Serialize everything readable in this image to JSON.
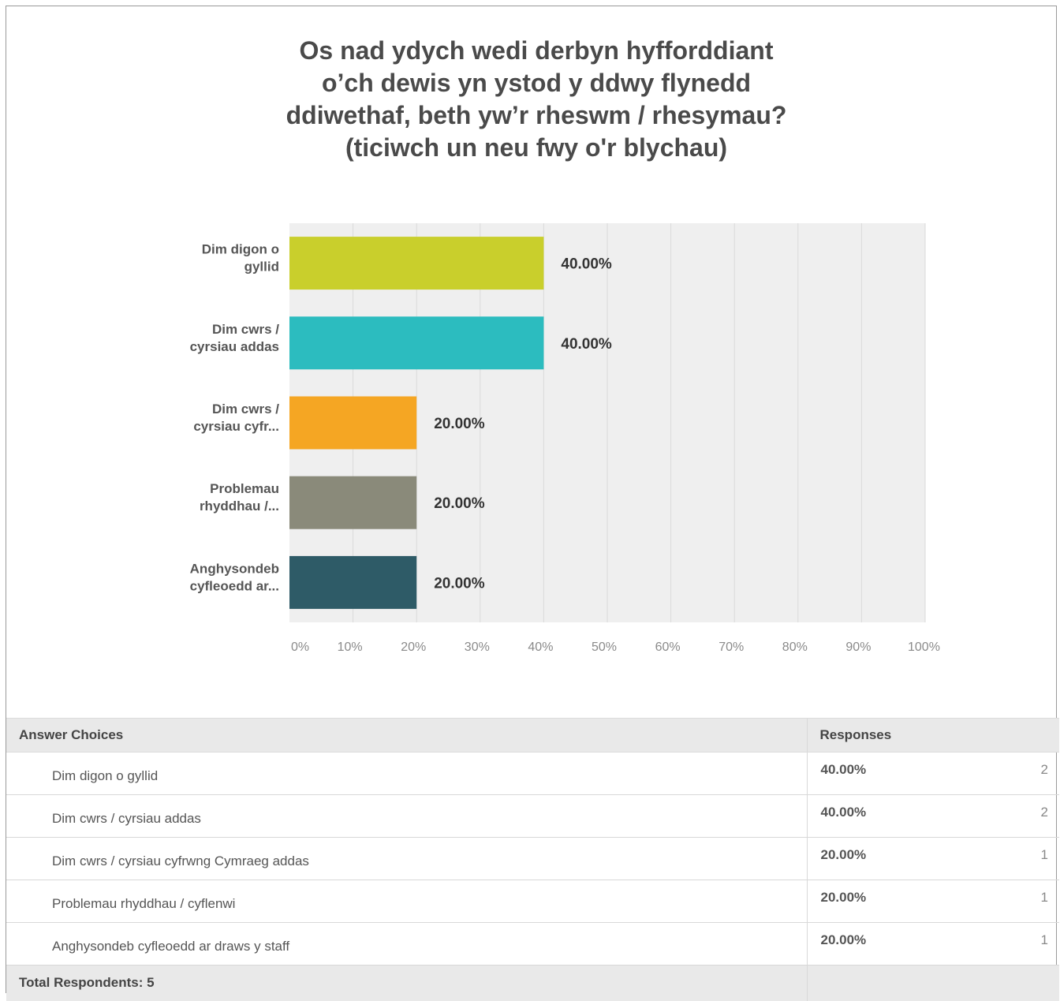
{
  "chart_data": {
    "type": "bar",
    "orientation": "horizontal",
    "title_lines": [
      "Os nad ydych wedi derbyn hyfforddiant",
      "o’ch dewis yn ystod y ddwy flynedd",
      "ddiwethaf, beth yw’r rheswm / rhesymau?",
      "(ticiwch un neu fwy o'r blychau)"
    ],
    "categories": [
      [
        "Dim digon o",
        "gyllid"
      ],
      [
        "Dim cwrs /",
        "cyrsiau addas"
      ],
      [
        "Dim cwrs /",
        "cyrsiau cyfr..."
      ],
      [
        "Problemau",
        "rhyddhau /..."
      ],
      [
        "Anghysondeb",
        "cyfleoedd ar..."
      ]
    ],
    "values": [
      40,
      40,
      20,
      20,
      20
    ],
    "value_labels": [
      "40.00%",
      "40.00%",
      "20.00%",
      "20.00%",
      "20.00%"
    ],
    "colors": [
      "#c9cf2c",
      "#2cbcbf",
      "#f5a623",
      "#8a8a7a",
      "#2e5b67"
    ],
    "xlim": [
      0,
      100
    ],
    "x_ticks": [
      0,
      10,
      20,
      30,
      40,
      50,
      60,
      70,
      80,
      90,
      100
    ],
    "x_tick_labels": [
      "0%",
      "10%",
      "20%",
      "30%",
      "40%",
      "50%",
      "60%",
      "70%",
      "80%",
      "90%",
      "100%"
    ],
    "grid": true,
    "plot_background": "#efefef"
  },
  "table": {
    "headers": [
      "Answer Choices",
      "Responses"
    ],
    "rows": [
      {
        "choice": "Dim digon o gyllid",
        "percent": "40.00%",
        "count": "2"
      },
      {
        "choice": "Dim cwrs / cyrsiau addas",
        "percent": "40.00%",
        "count": "2"
      },
      {
        "choice": "Dim cwrs / cyrsiau cyfrwng Cymraeg addas",
        "percent": "20.00%",
        "count": "1"
      },
      {
        "choice": "Problemau rhyddhau / cyflenwi",
        "percent": "20.00%",
        "count": "1"
      },
      {
        "choice": "Anghysondeb cyfleoedd ar draws y staff",
        "percent": "20.00%",
        "count": "1"
      }
    ],
    "total_label": "Total Respondents: 5"
  }
}
